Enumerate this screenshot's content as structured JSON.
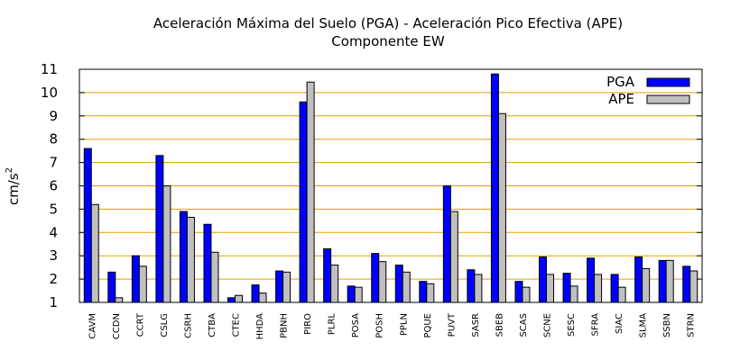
{
  "chart_data": {
    "type": "bar",
    "title": "Aceleración Máxima del Suelo (PGA) -  Aceleración Pico Efectiva (APE)",
    "subtitle": "Componente EW",
    "xlabel": "",
    "ylabel": "cm/s",
    "ylabel_superscript": "2",
    "ylim": [
      1,
      11
    ],
    "yticks": [
      "1",
      "2",
      "3",
      "4",
      "5",
      "6",
      "7",
      "8",
      "9",
      "10",
      "11"
    ],
    "grid": true,
    "legend_position": "top-right",
    "categories": [
      "CAVM",
      "CCDN",
      "CCRT",
      "CSLG",
      "CSRH",
      "CTBA",
      "CTEC",
      "HHDA",
      "PBNH",
      "PIRO",
      "PLRL",
      "POSA",
      "POSH",
      "PPLN",
      "PQUE",
      "PUVT",
      "SASR",
      "SBEB",
      "SCAS",
      "SCNE",
      "SESC",
      "SFRA",
      "SIAC",
      "SLMA",
      "SSBN",
      "STRN"
    ],
    "series": [
      {
        "name": "PGA",
        "color": "#0000ff",
        "values": [
          7.6,
          2.3,
          3.0,
          7.3,
          4.9,
          4.35,
          1.2,
          1.75,
          2.35,
          9.6,
          3.3,
          1.7,
          3.1,
          2.6,
          1.9,
          6.0,
          2.4,
          10.8,
          1.9,
          2.95,
          2.25,
          2.9,
          2.2,
          2.95,
          2.8,
          2.55
        ]
      },
      {
        "name": "APE",
        "color": "#c0c0c0",
        "values": [
          5.2,
          1.2,
          2.55,
          6.0,
          4.65,
          3.15,
          1.3,
          1.4,
          2.3,
          10.45,
          2.6,
          1.65,
          2.75,
          2.3,
          1.8,
          4.9,
          2.2,
          9.1,
          1.65,
          2.2,
          1.7,
          2.2,
          1.65,
          2.45,
          2.8,
          2.35
        ]
      }
    ],
    "colors": {
      "grid": "#e0a000",
      "axis": "#000000"
    }
  }
}
